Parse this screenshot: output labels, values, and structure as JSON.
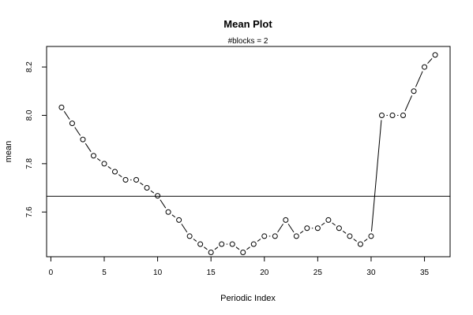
{
  "chart_data": {
    "type": "line",
    "title": "Mean Plot",
    "subtitle": "#blocks =  2",
    "xlabel": "Periodic Index",
    "ylabel": "mean",
    "xlim": [
      -0.4,
      37.4
    ],
    "ylim": [
      7.415,
      8.285
    ],
    "x_ticks": [
      0,
      5,
      10,
      15,
      20,
      25,
      30,
      35
    ],
    "y_ticks": [
      7.6,
      7.8,
      8.0,
      8.2
    ],
    "y_tick_labels": [
      "7.6",
      "7.8",
      "8.0",
      "8.2"
    ],
    "reference_line": 7.665,
    "grid": false,
    "series": [
      {
        "x": [
          1,
          2,
          3,
          4,
          5,
          6,
          7,
          8,
          9,
          10,
          11,
          12,
          13,
          14,
          15,
          16,
          17,
          18,
          19,
          20,
          21,
          22,
          23,
          24,
          25,
          26,
          27,
          28,
          29,
          30,
          31,
          32,
          33,
          34,
          35,
          36
        ],
        "values": [
          8.033,
          7.967,
          7.9,
          7.833,
          7.8,
          7.767,
          7.733,
          7.733,
          7.7,
          7.667,
          7.6,
          7.567,
          7.5,
          7.467,
          7.433,
          7.467,
          7.467,
          7.433,
          7.467,
          7.5,
          7.5,
          7.567,
          7.5,
          7.533,
          7.533,
          7.567,
          7.533,
          7.5,
          7.467,
          7.5,
          8.0,
          8.0,
          8.0,
          8.1,
          8.2,
          8.25
        ]
      }
    ]
  }
}
